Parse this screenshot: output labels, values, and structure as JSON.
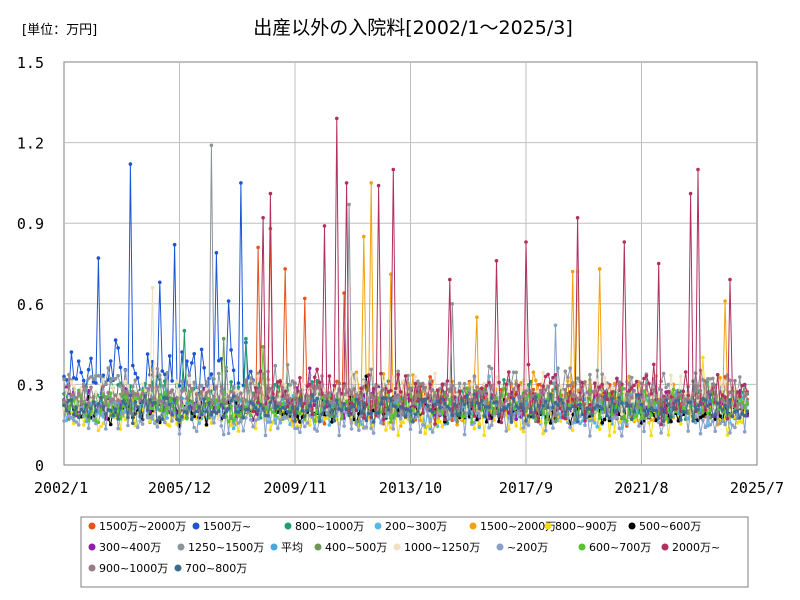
{
  "chart_data": {
    "type": "line",
    "title": "出産以外の入院料[2002/1～2025/3]",
    "unit_label": "[単位：万円]",
    "x_range": [
      "2002/1",
      "2025/7"
    ],
    "x_ticks": [
      "2002/1",
      "2005/12",
      "2009/11",
      "2013/10",
      "2017/9",
      "2021/8",
      "2025/7"
    ],
    "ylim": [
      0,
      1.5
    ],
    "y_ticks": [
      "0",
      "0.3",
      "0.6",
      "0.9",
      "1.2",
      "1.5"
    ],
    "grid": true,
    "legend_position": "bottom",
    "series": [
      {
        "name": "1500万~2000万",
        "color": "#e8531a",
        "first": "2008/6",
        "base": 0.24,
        "amp": 0.1,
        "peaks": [
          [
            "2008/8",
            0.81
          ],
          [
            "2009/1",
            0.88
          ],
          [
            "2009/7",
            0.73
          ],
          [
            "2010/3",
            0.62
          ],
          [
            "2011/7",
            0.64
          ]
        ]
      },
      {
        "name": "1500万~",
        "color": "#1b56d6",
        "first": "2002/1",
        "last": "2008/6",
        "base": 0.34,
        "amp": 0.14,
        "peaks": [
          [
            "2004/4",
            1.12
          ],
          [
            "2003/3",
            0.77
          ],
          [
            "2005/10",
            0.82
          ],
          [
            "2007/3",
            0.79
          ],
          [
            "2008/1",
            1.05
          ],
          [
            "2005/4",
            0.68
          ],
          [
            "2007/8",
            0.61
          ]
        ]
      },
      {
        "name": "800~1000万",
        "color": "#1e9e6e",
        "first": "2002/1",
        "base": 0.24,
        "amp": 0.09,
        "peaks": [
          [
            "2006/2",
            0.5
          ],
          [
            "2008/3",
            0.47
          ]
        ]
      },
      {
        "name": "200~300万",
        "color": "#58b7e8",
        "first": "2002/1",
        "base": 0.2,
        "amp": 0.07,
        "peaks": [
          [
            "2016/6",
            0.33
          ]
        ]
      },
      {
        "name": "1500~2000万",
        "color": "#f2a20f",
        "first": "2011/6",
        "base": 0.24,
        "amp": 0.11,
        "peaks": [
          [
            "2012/6",
            1.05
          ],
          [
            "2012/3",
            0.85
          ],
          [
            "2019/4",
            0.72
          ],
          [
            "2020/3",
            0.73
          ],
          [
            "2024/6",
            0.61
          ],
          [
            "2013/2",
            0.71
          ],
          [
            "2016/1",
            0.55
          ]
        ]
      },
      {
        "name": "800~900万",
        "color": "#f5dc14",
        "first": "2002/1",
        "base": 0.18,
        "amp": 0.08,
        "peaks": [
          [
            "2019/6",
            0.72
          ],
          [
            "2023/9",
            0.4
          ]
        ]
      },
      {
        "name": "500~600万",
        "color": "#000000",
        "first": "2002/1",
        "base": 0.2,
        "amp": 0.06,
        "peaks": [
          [
            "2012/4",
            0.33
          ]
        ]
      },
      {
        "name": "300~400万",
        "color": "#8e1fa6",
        "first": "2002/1",
        "base": 0.23,
        "amp": 0.07,
        "peaks": [
          [
            "2010/5",
            0.36
          ]
        ]
      },
      {
        "name": "1250~1500万",
        "color": "#8c9399",
        "first": "2002/1",
        "base": 0.28,
        "amp": 0.1,
        "peaks": [
          [
            "2007/1",
            1.19
          ],
          [
            "2011/9",
            0.97
          ],
          [
            "2015/3",
            0.6
          ]
        ]
      },
      {
        "name": "平均",
        "color": "#4aa8d8",
        "first": "2002/1",
        "base": 0.23,
        "amp": 0.04,
        "peaks": []
      },
      {
        "name": "400~500万",
        "color": "#6d9a53",
        "first": "2002/1",
        "base": 0.22,
        "amp": 0.07,
        "peaks": [
          [
            "2007/6",
            0.47
          ]
        ]
      },
      {
        "name": "1000~1250万",
        "color": "#efe1bf",
        "first": "2002/1",
        "base": 0.26,
        "amp": 0.09,
        "peaks": [
          [
            "2005/1",
            0.66
          ]
        ]
      },
      {
        "name": "~200万",
        "color": "#8a9fc9",
        "first": "2002/1",
        "base": 0.18,
        "amp": 0.08,
        "peaks": [
          [
            "2018/9",
            0.52
          ]
        ]
      },
      {
        "name": "600~700万",
        "color": "#57c42e",
        "first": "2002/1",
        "base": 0.22,
        "amp": 0.07,
        "peaks": [
          [
            "2008/10",
            0.44
          ]
        ]
      },
      {
        "name": "2000万~",
        "color": "#b0305f",
        "first": "2008/6",
        "base": 0.26,
        "amp": 0.12,
        "peaks": [
          [
            "2011/4",
            1.29
          ],
          [
            "2009/1",
            1.01
          ],
          [
            "2011/8",
            1.05
          ],
          [
            "2013/3",
            1.1
          ],
          [
            "2012/9",
            1.04
          ],
          [
            "2023/7",
            1.1
          ],
          [
            "2023/4",
            1.01
          ],
          [
            "2019/6",
            0.92
          ],
          [
            "2017/9",
            0.83
          ],
          [
            "2021/1",
            0.83
          ],
          [
            "2008/10",
            0.92
          ],
          [
            "2010/11",
            0.89
          ],
          [
            "2016/9",
            0.76
          ],
          [
            "2024/8",
            0.69
          ],
          [
            "2015/2",
            0.69
          ],
          [
            "2022/3",
            0.75
          ]
        ]
      },
      {
        "name": "900~1000万",
        "color": "#9b7b86",
        "first": "2002/1",
        "base": 0.25,
        "amp": 0.07,
        "peaks": []
      },
      {
        "name": "700~800万",
        "color": "#3f6b8e",
        "first": "2002/1",
        "base": 0.21,
        "amp": 0.06,
        "peaks": []
      }
    ]
  }
}
